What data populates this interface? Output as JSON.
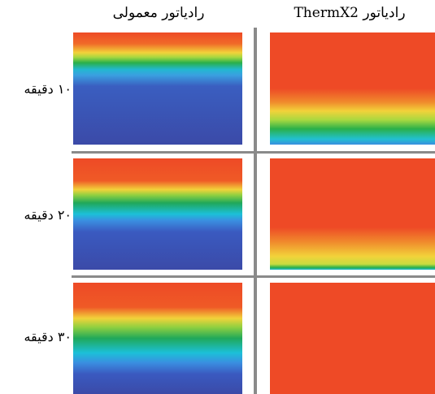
{
  "columns": [
    "رادیاتور معمولی",
    "رادیاتور ThermX2"
  ],
  "rows": [
    "۱۰ دقیقه",
    "۲۰ دقیقه",
    "۳۰ دقیقه"
  ]
}
